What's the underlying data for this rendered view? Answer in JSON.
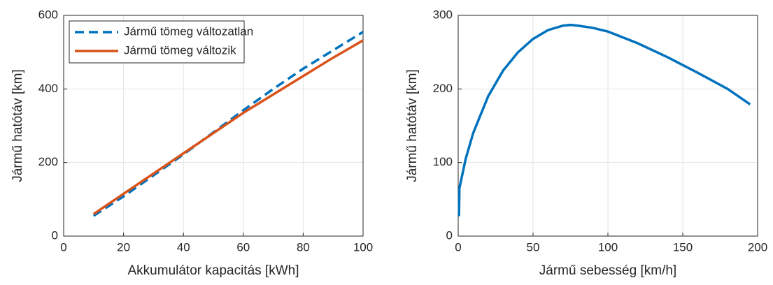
{
  "chart_data": [
    {
      "type": "line",
      "xlabel": "Akkumulátor kapacitás [kWh]",
      "ylabel": "Jármű hatótáv [km]",
      "x": [
        10,
        20,
        30,
        40,
        50,
        60,
        70,
        80,
        90,
        100
      ],
      "series": [
        {
          "name": "Jármű tömeg változatlan",
          "color": "#0072bd",
          "dash": true,
          "values": [
            55,
            108,
            165,
            222,
            282,
            342,
            400,
            455,
            505,
            555
          ]
        },
        {
          "name": "Jármű tömeg változik",
          "color": "#d95319",
          "dash": false,
          "values": [
            60,
            115,
            170,
            225,
            280,
            335,
            385,
            435,
            485,
            532
          ]
        }
      ],
      "xlim": [
        0,
        100
      ],
      "xticks": [
        0,
        20,
        40,
        60,
        80,
        100
      ],
      "ylim": [
        0,
        600
      ],
      "yticks": [
        0,
        200,
        400,
        600
      ],
      "grid": true,
      "legend": "top-left"
    },
    {
      "type": "line",
      "xlabel": "Jármű sebesség [km/h]",
      "ylabel": "Jármű hatótáv [km]",
      "x": [
        0.5,
        0.8,
        5,
        10,
        20,
        30,
        40,
        50,
        60,
        70,
        75,
        80,
        90,
        100,
        120,
        140,
        160,
        180,
        195
      ],
      "series": [
        {
          "color": "#0072bd",
          "dash": false,
          "values": [
            27,
            65,
            105,
            140,
            190,
            225,
            250,
            268,
            280,
            286,
            287,
            286,
            283,
            278,
            262,
            243,
            222,
            200,
            179
          ]
        }
      ],
      "xlim": [
        0,
        200
      ],
      "xticks": [
        0,
        50,
        100,
        150,
        200
      ],
      "ylim": [
        0,
        300
      ],
      "yticks": [
        0,
        100,
        200,
        300
      ],
      "grid": true
    }
  ]
}
